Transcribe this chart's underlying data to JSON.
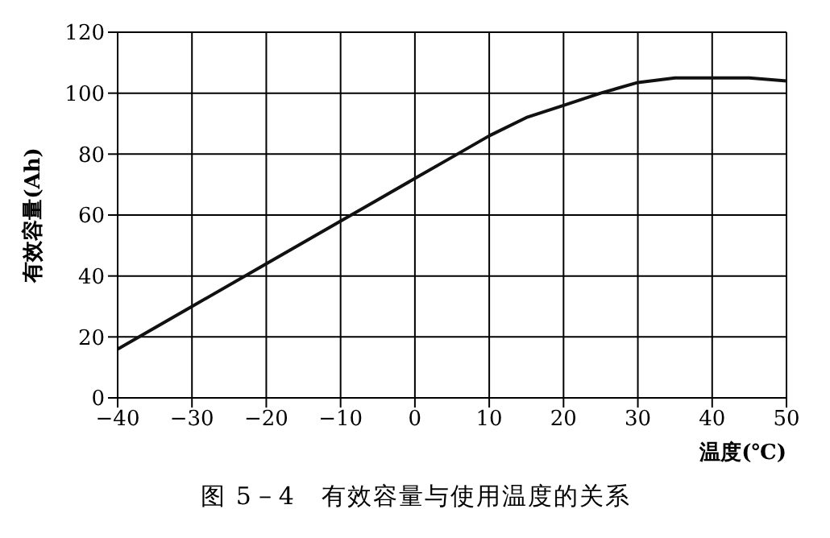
{
  "chart_data": {
    "type": "line",
    "title": "图 5－4　有效容量与使用温度的关系",
    "xlabel": "温度(℃)",
    "ylabel": "有效容量(Ah)",
    "series": [
      {
        "color": "#111111",
        "x": [
          -40,
          -35,
          -30,
          -20,
          -10,
          0,
          5,
          10,
          15,
          20,
          25,
          30,
          35,
          40,
          45,
          50
        ],
        "values": [
          16,
          23,
          30,
          44,
          58,
          72,
          79,
          86,
          92,
          96,
          100,
          103.5,
          105,
          105,
          105,
          104
        ]
      }
    ],
    "xlim": [
      -40,
      50
    ],
    "xticks": [
      -40,
      -30,
      -20,
      -10,
      0,
      10,
      20,
      30,
      40,
      50
    ],
    "ylim": [
      0,
      120
    ],
    "yticks": [
      0,
      20,
      40,
      60,
      80,
      100,
      120
    ],
    "grid": true,
    "marker": "none",
    "line_style": "solid"
  }
}
